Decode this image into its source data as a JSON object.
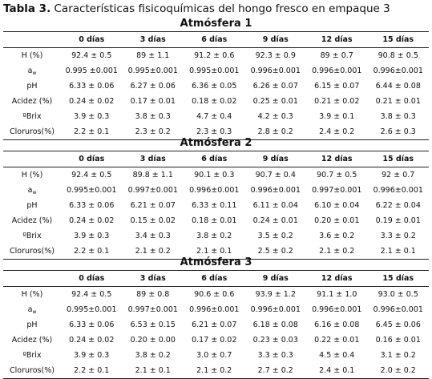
{
  "caption": {
    "prefix": "Tabla 3.",
    "text": "Características fisicoquímicas del hongo fresco en empaque 3"
  },
  "columns": [
    "0 días",
    "3 días",
    "6 días",
    "9 días",
    "12 días",
    "15 días"
  ],
  "row_labels": [
    "H (%)",
    "a",
    "pH",
    "Acidez (%)",
    "ºBrix",
    "Cloruros(%)"
  ],
  "aw_subscript": "w",
  "blocks": [
    {
      "title": "Atmósfera 1",
      "rows": [
        [
          "92.4 ± 0.5",
          "89 ± 1.1",
          "91.2 ± 0.6",
          "92.3 ± 0.9",
          "89 ± 0.7",
          "90.8 ± 0.5"
        ],
        [
          "0.995 ±0.001",
          "0.995±0.001",
          "0.995±0.001",
          "0.996±0.001",
          "0.996±0.001",
          "0.996±0.001"
        ],
        [
          "6.33 ± 0.06",
          "6.27 ± 0.06",
          "6.36 ± 0.05",
          "6.26 ± 0.07",
          "6.15 ± 0.07",
          "6.44 ± 0.08"
        ],
        [
          "0.24 ± 0.02",
          "0.17 ± 0.01",
          "0.18 ± 0.02",
          "0.25 ± 0.01",
          "0.21 ± 0.02",
          "0.21 ± 0.01"
        ],
        [
          "3.9 ± 0.3",
          "3.8 ± 0.3",
          "4.7 ± 0.4",
          "4.2 ± 0.3",
          "3.9 ± 0.1",
          "3.8 ± 0.3"
        ],
        [
          "2.2 ± 0.1",
          "2.3 ± 0.2",
          "2.3 ± 0.3",
          "2.8 ± 0.2",
          "2.4 ± 0.2",
          "2.6 ± 0.3"
        ]
      ]
    },
    {
      "title": "Atmósfera 2",
      "rows": [
        [
          "92.4 ± 0.5",
          "89.8 ± 1.1",
          "90.1 ± 0.3",
          "90.7 ± 0.4",
          "90.7 ± 0.5",
          "92 ± 0.7"
        ],
        [
          "0.995±0.001",
          "0.997±0.001",
          "0.996±0.001",
          "0.996±0.001",
          "0.997±0.001",
          "0.996±0.001"
        ],
        [
          "6.33 ± 0.06",
          "6.21 ± 0.07",
          "6.33 ± 0.11",
          "6.11 ± 0.04",
          "6.10 ± 0.04",
          "6.22 ± 0.04"
        ],
        [
          "0.24 ± 0.02",
          "0.15 ± 0.02",
          "0.18 ± 0.01",
          "0.24 ± 0.01",
          "0.20 ± 0.01",
          "0.19 ± 0.01"
        ],
        [
          "3.9 ± 0.3",
          "3.4 ± 0.3",
          "3.8 ± 0.2",
          "3.5 ± 0.2",
          "3.6 ± 0.2",
          "3.3 ± 0.2"
        ],
        [
          "2.2 ± 0.1",
          "2.1 ± 0.2",
          "2.1 ± 0.1",
          "2.5 ± 0.2",
          "2.1 ± 0.2",
          "2.1 ± 0.1"
        ]
      ]
    },
    {
      "title": "Atmósfera 3",
      "rows": [
        [
          "92.4 ± 0.5",
          "89 ± 0.8",
          "90.6 ± 0.6",
          "93.9 ± 1.2",
          "91.1 ± 1.0",
          "93.0 ± 0.5"
        ],
        [
          "0.995±0.001",
          "0.997±0.001",
          "0.996±0.001",
          "0.996±0.001",
          "0.996±0.001",
          "0.996±0.001"
        ],
        [
          "6.33 ± 0.06",
          "6.53 ± 0.15",
          "6.21 ± 0.07",
          "6.18 ± 0.08",
          "6.16 ± 0.08",
          "6.45 ± 0.06"
        ],
        [
          "0.24 ± 0.02",
          "0.20 ± 0.00",
          "0.17 ± 0.02",
          "0.23 ± 0.03",
          "0.22 ± 0.01",
          "0.16 ± 0.01"
        ],
        [
          "3.9 ± 0.3",
          "3.8 ± 0.2",
          "3.0 ± 0.7",
          "3.3 ± 0.3",
          "4.5 ± 0.4",
          "3.1 ± 0.2"
        ],
        [
          "2.2 ± 0.1",
          "2.1 ± 0.1",
          "2.1 ± 0.2",
          "2.7 ± 0.2",
          "2.4 ± 0.1",
          "2.0 ± 0.2"
        ]
      ]
    }
  ]
}
